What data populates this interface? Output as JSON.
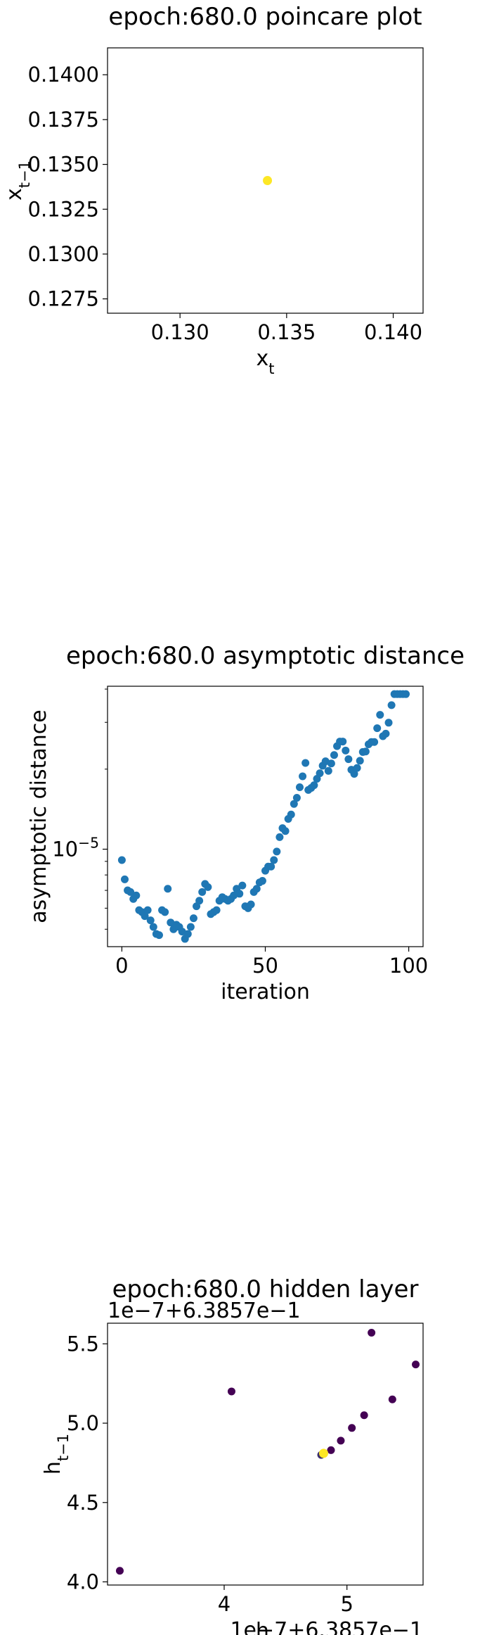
{
  "charts": [
    {
      "type": "scatter",
      "title": "epoch:680.0 poincare plot",
      "xlabel": "x_t",
      "ylabel": "x_{t-1}",
      "xlim": [
        0.1266,
        0.1414
      ],
      "ylim": [
        0.1267,
        0.1415
      ],
      "xticks": [
        0.13,
        0.135,
        0.14
      ],
      "xticklabels": [
        "0.130",
        "0.135",
        "0.140"
      ],
      "yticks": [
        0.1275,
        0.13,
        0.1325,
        0.135,
        0.1375,
        0.14
      ],
      "yticklabels": [
        "0.1275",
        "0.1300",
        "0.1325",
        "0.1350",
        "0.1375",
        "0.1400"
      ],
      "points": [
        {
          "x": 0.1341,
          "y": 0.1341,
          "color": "#fde725"
        }
      ]
    },
    {
      "type": "scatter",
      "title": "epoch:680.0 asymptotic distance",
      "xlabel": "iteration",
      "ylabel": "asymptotic distance",
      "yscale": "log",
      "xlim": [
        -5,
        105
      ],
      "ylim": [
        4.3e-06,
        4.1e-05
      ],
      "xticks": [
        0,
        50,
        100
      ],
      "xticklabels": [
        "0",
        "50",
        "100"
      ],
      "yticks": [
        1e-05
      ],
      "yticklabels": [
        "10^{-5}"
      ],
      "color": "#1f77b4",
      "x": [
        0,
        1,
        2,
        3,
        4,
        5,
        6,
        7,
        8,
        9,
        10,
        11,
        12,
        13,
        14,
        15,
        16,
        17,
        18,
        19,
        20,
        21,
        22,
        23,
        24,
        25,
        26,
        27,
        28,
        29,
        30,
        31,
        32,
        33,
        34,
        35,
        36,
        37,
        38,
        39,
        40,
        41,
        42,
        43,
        44,
        45,
        46,
        47,
        48,
        49,
        50,
        51,
        52,
        53,
        54,
        55,
        56,
        57,
        58,
        59,
        60,
        61,
        62,
        63,
        64,
        65,
        66,
        67,
        68,
        69,
        70,
        71,
        72,
        73,
        74,
        75,
        76,
        77,
        78,
        79,
        80,
        81,
        82,
        83,
        84,
        85,
        86,
        87,
        88,
        89,
        90,
        91,
        92,
        93,
        94,
        95,
        96,
        97,
        98,
        99
      ],
      "y": [
        9.1e-06,
        7.7e-06,
        7e-06,
        6.9e-06,
        6.5e-06,
        6.7e-06,
        5.9e-06,
        5.8e-06,
        5.6e-06,
        5.9e-06,
        5.4e-06,
        5.1e-06,
        4.8e-06,
        4.75e-06,
        5.9e-06,
        5.8e-06,
        7.1e-06,
        5.3e-06,
        5e-06,
        5.2e-06,
        5.1e-06,
        4.9e-06,
        4.6e-06,
        4.8e-06,
        5.1e-06,
        5.5e-06,
        6.1e-06,
        6.4e-06,
        6.9e-06,
        7.4e-06,
        7.2e-06,
        5.7e-06,
        5.8e-06,
        5.9e-06,
        6.4e-06,
        6.6e-06,
        6.5e-06,
        6.4e-06,
        6.5e-06,
        6.7e-06,
        7.1e-06,
        6.8e-06,
        7.3e-06,
        6.1e-06,
        6e-06,
        6.2e-06,
        6.9e-06,
        7.1e-06,
        7.5e-06,
        7.6e-06,
        8.3e-06,
        8.6e-06,
        8.6e-06,
        9.1e-06,
        9.8e-06,
        1.11e-05,
        1.2e-05,
        1.17e-05,
        1.3e-05,
        1.35e-05,
        1.48e-05,
        1.56e-05,
        1.71e-05,
        1.88e-05,
        2.11e-05,
        1.67e-05,
        1.7e-05,
        1.74e-05,
        1.84e-05,
        1.93e-05,
        2.06e-05,
        2.14e-05,
        1.97e-05,
        2.1e-05,
        2.26e-05,
        2.44e-05,
        2.54e-05,
        2.54e-05,
        2.35e-05,
        2.18e-05,
        1.99e-05,
        1.92e-05,
        2.02e-05,
        2.15e-05,
        2.32e-05,
        2.33e-05,
        2.48e-05,
        2.53e-05,
        2.53e-05,
        2.85e-05,
        3.2e-05,
        2.66e-05,
        2.72e-05,
        2.99e-05,
        3.48e-05,
        3.83e-05,
        3.83e-05,
        3.83e-05,
        3.83e-05,
        3.83e-05
      ]
    },
    {
      "type": "scatter",
      "title": "epoch:680.0 hidden layer",
      "xlabel": "h_t",
      "ylabel": "h_{t-1}",
      "x_offset_text": "1e−7+6.3857e−1",
      "y_offset_text": "1e−7+6.3857e−1",
      "xlim": [
        3.05,
        5.62
      ],
      "ylim": [
        3.98,
        5.63
      ],
      "xticks": [
        4,
        5
      ],
      "xticklabels": [
        "4",
        "5"
      ],
      "yticks": [
        4.0,
        4.5,
        5.0,
        5.5
      ],
      "yticklabels": [
        "4.0",
        "4.5",
        "5.0",
        "5.5"
      ],
      "points": [
        {
          "x": 3.15,
          "y": 4.07,
          "color": "#440154"
        },
        {
          "x": 4.06,
          "y": 5.2,
          "color": "#440154"
        },
        {
          "x": 4.87,
          "y": 4.83,
          "color": "#440154"
        },
        {
          "x": 4.95,
          "y": 4.89,
          "color": "#440154"
        },
        {
          "x": 5.04,
          "y": 4.97,
          "color": "#440154"
        },
        {
          "x": 5.14,
          "y": 5.05,
          "color": "#440154"
        },
        {
          "x": 5.2,
          "y": 5.57,
          "color": "#440154"
        },
        {
          "x": 5.37,
          "y": 5.15,
          "color": "#440154"
        },
        {
          "x": 5.56,
          "y": 5.37,
          "color": "#440154"
        },
        {
          "x": 4.79,
          "y": 4.8,
          "color": "#3b2f6e"
        },
        {
          "x": 4.81,
          "y": 4.81,
          "color": "#fde725"
        }
      ]
    }
  ]
}
